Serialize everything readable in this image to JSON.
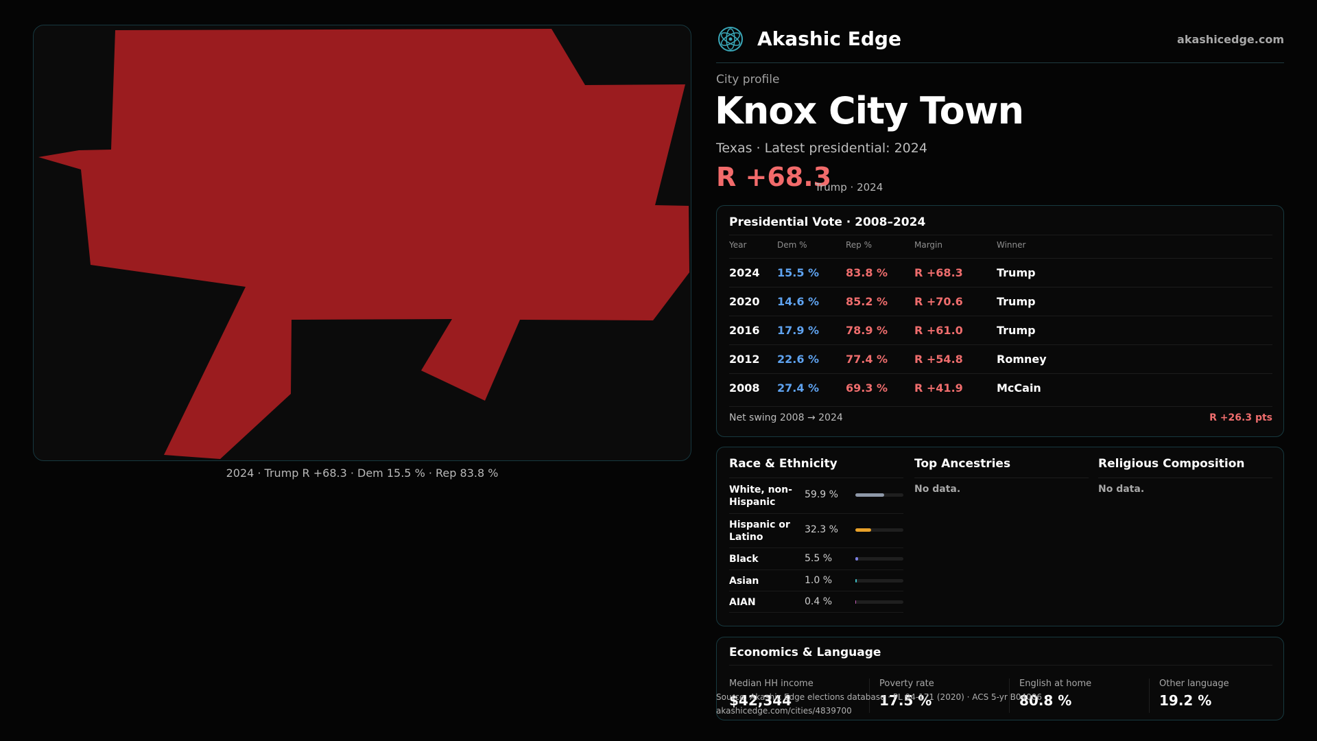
{
  "map": {
    "fill_color": "#9b1c1f",
    "caption": "2024 · Trump R +68.3 · Dem 15.5 % · Rep 83.8 %"
  },
  "brand": {
    "name": "Akashic Edge",
    "url": "akashicedge.com",
    "logo_icon": "atom-logo-icon"
  },
  "profile": {
    "eyebrow": "City profile",
    "title": "Knox City Town",
    "subtitle": "Texas · Latest presidential: 2024",
    "margin": "R +68.3",
    "margin_note": "Trump · 2024"
  },
  "presidential": {
    "title": "Presidential Vote · 2008–2024",
    "columns": [
      "Year",
      "Dem %",
      "Rep %",
      "Margin",
      "Winner"
    ],
    "rows": [
      {
        "year": "2024",
        "dem": "15.5 %",
        "rep": "83.8 %",
        "margin": "R +68.3",
        "winner": "Trump"
      },
      {
        "year": "2020",
        "dem": "14.6 %",
        "rep": "85.2 %",
        "margin": "R +70.6",
        "winner": "Trump"
      },
      {
        "year": "2016",
        "dem": "17.9 %",
        "rep": "78.9 %",
        "margin": "R +61.0",
        "winner": "Trump"
      },
      {
        "year": "2012",
        "dem": "22.6 %",
        "rep": "77.4 %",
        "margin": "R +54.8",
        "winner": "Romney"
      },
      {
        "year": "2008",
        "dem": "27.4 %",
        "rep": "69.3 %",
        "margin": "R +41.9",
        "winner": "McCain"
      }
    ],
    "swing_label": "Net swing 2008 → 2024",
    "swing_value": "R +26.3 pts"
  },
  "race": {
    "title": "Race & Ethnicity",
    "rows": [
      {
        "label": "White, non-Hispanic",
        "pct": "59.9 %",
        "fraction": 0.599,
        "color": "#8e98a8"
      },
      {
        "label": "Hispanic or Latino",
        "pct": "32.3 %",
        "fraction": 0.323,
        "color": "#e8a12a"
      },
      {
        "label": "Black",
        "pct": "5.5 %",
        "fraction": 0.055,
        "color": "#7b7fe0"
      },
      {
        "label": "Asian",
        "pct": "1.0 %",
        "fraction": 0.01,
        "color": "#3ec1c9"
      },
      {
        "label": "AIAN",
        "pct": "0.4 %",
        "fraction": 0.004,
        "color": "#c45db8"
      }
    ]
  },
  "ancestries": {
    "title": "Top Ancestries",
    "empty": "No data."
  },
  "religion": {
    "title": "Religious Composition",
    "empty": "No data."
  },
  "economics": {
    "title": "Economics & Language",
    "stats": [
      {
        "label": "Median HH income",
        "value": "$42,344"
      },
      {
        "label": "Poverty rate",
        "value": "17.5 %"
      },
      {
        "label": "English at home",
        "value": "80.8 %"
      },
      {
        "label": "Other language",
        "value": "19.2 %"
      }
    ]
  },
  "source": {
    "line1": "Source: Akashic Edge elections database · PL 94-171 (2020) · ACS 5-yr B04006",
    "line2": "akashicedge.com/cities/4839700"
  }
}
